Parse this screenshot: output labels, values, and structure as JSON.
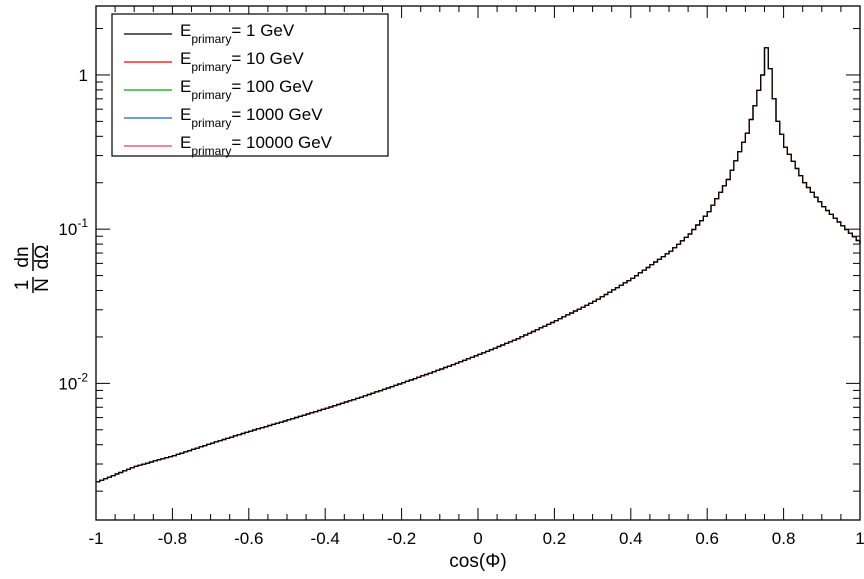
{
  "chart_data": {
    "type": "line",
    "title": "",
    "xlabel": "cos(Φ)",
    "ylabel": {
      "numerator_top": "1",
      "numerator_bottom": "N",
      "fraction_top": "dn",
      "fraction_bottom": "dΩ"
    },
    "x_scale": "linear",
    "y_scale": "log",
    "xlim": [
      -1,
      1
    ],
    "ylim": [
      0.0013,
      2.8
    ],
    "grid": false,
    "legend_position": "top-left",
    "x_ticks": [
      {
        "value": -1,
        "label": "-1"
      },
      {
        "value": -0.8,
        "label": "-0.8"
      },
      {
        "value": -0.6,
        "label": "-0.6"
      },
      {
        "value": -0.4,
        "label": "-0.4"
      },
      {
        "value": -0.2,
        "label": "-0.2"
      },
      {
        "value": 0,
        "label": "0"
      },
      {
        "value": 0.2,
        "label": "0.2"
      },
      {
        "value": 0.4,
        "label": "0.4"
      },
      {
        "value": 0.6,
        "label": "0.6"
      },
      {
        "value": 0.8,
        "label": "0.8"
      },
      {
        "value": 1,
        "label": "1"
      }
    ],
    "y_ticks": [
      {
        "value": 0.01,
        "base": "10",
        "exp": "-2"
      },
      {
        "value": 0.1,
        "base": "10",
        "exp": "-1"
      },
      {
        "value": 1,
        "base": "1",
        "exp": ""
      }
    ],
    "series_style": "step",
    "series": [
      {
        "name_main": "E",
        "name_sub": "primary",
        "name_tail": "= 1 GeV",
        "color": "#000000"
      },
      {
        "name_main": "E",
        "name_sub": "primary",
        "name_tail": "= 10 GeV",
        "color": "#ff0000"
      },
      {
        "name_main": "E",
        "name_sub": "primary",
        "name_tail": "= 100 GeV",
        "color": "#00aa00"
      },
      {
        "name_main": "E",
        "name_sub": "primary",
        "name_tail": "= 1000 GeV",
        "color": "#1f5fd0"
      },
      {
        "name_main": "E",
        "name_sub": "primary",
        "name_tail": "= 10000 GeV",
        "color": "#e04060"
      }
    ],
    "x": [
      -1.0,
      -0.9,
      -0.8,
      -0.7,
      -0.6,
      -0.5,
      -0.4,
      -0.3,
      -0.2,
      -0.1,
      0.0,
      0.1,
      0.2,
      0.3,
      0.4,
      0.5,
      0.55,
      0.6,
      0.65,
      0.7,
      0.72,
      0.74,
      0.75,
      0.76,
      0.77,
      0.78,
      0.8,
      0.85,
      0.9,
      0.95,
      1.0
    ],
    "values": [
      0.0023,
      0.0029,
      0.0034,
      0.0041,
      0.0049,
      0.0058,
      0.0069,
      0.0083,
      0.0101,
      0.0124,
      0.0154,
      0.0195,
      0.0255,
      0.034,
      0.048,
      0.072,
      0.093,
      0.13,
      0.21,
      0.42,
      0.63,
      1.0,
      1.5,
      1.1,
      0.7,
      0.5,
      0.34,
      0.2,
      0.14,
      0.105,
      0.08
    ]
  }
}
